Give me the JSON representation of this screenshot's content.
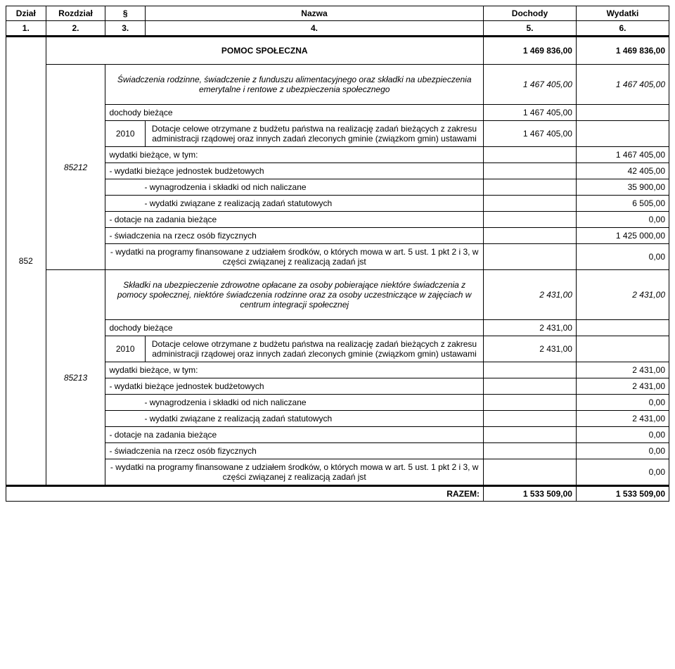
{
  "header": {
    "cols": [
      "Dział",
      "Rozdział",
      "§",
      "Nazwa",
      "Dochody",
      "Wydatki"
    ],
    "nums": [
      "1.",
      "2.",
      "3.",
      "4.",
      "5.",
      "6."
    ]
  },
  "section_title": "POMOC SPOŁECZNA",
  "section_dochody": "1 469 836,00",
  "section_wydatki": "1 469 836,00",
  "dzial": "852",
  "rows": [
    {
      "rozdzial": "85212",
      "descr": "Świadczenia rodzinne, świadczenie z funduszu alimentacyjnego oraz składki na ubezpieczenia emerytalne i rentowe z ubezpieczenia społecznego",
      "d": "1 467 405,00",
      "w": "1 467 405,00",
      "lines": [
        {
          "t": "dochody bieżące",
          "d": "1 467 405,00",
          "w": "",
          "cls": ""
        },
        {
          "para": "2010",
          "t": "Dotacje celowe otrzymane z budżetu państwa na realizację zadań bieżących z zakresu administracji rządowej oraz innych zadań zleconych gminie (związkom gmin) ustawami",
          "d": "1 467 405,00",
          "w": "",
          "cls": "center"
        },
        {
          "t": "wydatki bieżące, w tym:",
          "d": "",
          "w": "1 467 405,00",
          "cls": ""
        },
        {
          "t": "- wydatki bieżące jednostek budżetowych",
          "d": "",
          "w": "42 405,00",
          "cls": ""
        },
        {
          "t": "- wynagrodzenia i składki od nich naliczane",
          "d": "",
          "w": "35 900,00",
          "cls": "indent2"
        },
        {
          "t": "- wydatki związane z realizacją zadań statutowych",
          "d": "",
          "w": "6 505,00",
          "cls": "indent2"
        },
        {
          "t": "- dotacje na zadania bieżące",
          "d": "",
          "w": "0,00",
          "cls": ""
        },
        {
          "t": "- świadczenia na rzecz osób fizycznych",
          "d": "",
          "w": "1 425 000,00",
          "cls": ""
        },
        {
          "t": "- wydatki na programy finansowane z udziałem środków, o których mowa w art. 5 ust. 1 pkt 2 i 3, w części związanej z realizacją zadań jst",
          "d": "",
          "w": "0,00",
          "cls": "center"
        }
      ]
    },
    {
      "rozdzial": "85213",
      "descr": "Składki na ubezpieczenie zdrowotne opłacane za osoby pobierające niektóre świadczenia z pomocy społecznej, niektóre świadczenia rodzinne oraz za osoby uczestniczące w zajęciach w centrum integracji społecznej",
      "d": "2 431,00",
      "w": "2 431,00",
      "lines": [
        {
          "t": "dochody bieżące",
          "d": "2 431,00",
          "w": "",
          "cls": ""
        },
        {
          "para": "2010",
          "t": "Dotacje celowe otrzymane z budżetu państwa na realizację zadań bieżących z zakresu administracji rządowej oraz innych zadań zleconych gminie (związkom gmin) ustawami",
          "d": "2 431,00",
          "w": "",
          "cls": "center"
        },
        {
          "t": "wydatki bieżące, w tym:",
          "d": "",
          "w": "2 431,00",
          "cls": ""
        },
        {
          "t": "- wydatki bieżące jednostek budżetowych",
          "d": "",
          "w": "2 431,00",
          "cls": ""
        },
        {
          "t": "- wynagrodzenia i składki od nich naliczane",
          "d": "",
          "w": "0,00",
          "cls": "indent2"
        },
        {
          "t": "- wydatki związane z realizacją zadań statutowych",
          "d": "",
          "w": "2 431,00",
          "cls": "indent2"
        },
        {
          "t": "- dotacje na zadania bieżące",
          "d": "",
          "w": "0,00",
          "cls": ""
        },
        {
          "t": "- świadczenia na rzecz osób fizycznych",
          "d": "",
          "w": "0,00",
          "cls": ""
        },
        {
          "t": "- wydatki na programy finansowane z udziałem środków, o których mowa w art. 5 ust. 1 pkt 2 i 3, w części związanej z realizacją zadań jst",
          "d": "",
          "w": "0,00",
          "cls": "center"
        }
      ]
    }
  ],
  "razem": {
    "label": "RAZEM:",
    "d": "1 533 509,00",
    "w": "1 533 509,00"
  },
  "colwidths": [
    "6%",
    "9%",
    "6%",
    "51%",
    "14%",
    "14%"
  ]
}
